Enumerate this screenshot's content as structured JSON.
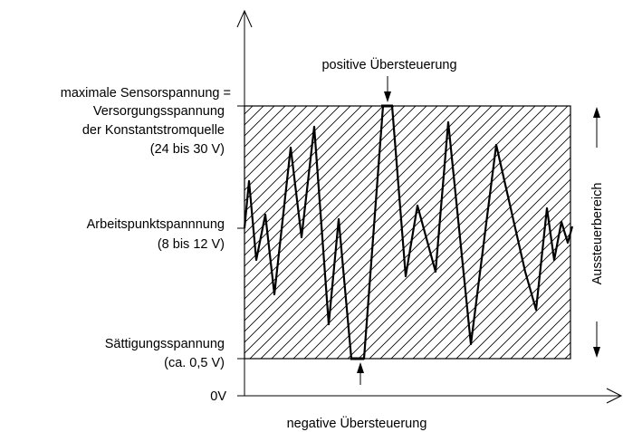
{
  "labels": {
    "max_line1": "maximale Sensorspannung =",
    "max_line2": "Versorgungsspannung",
    "max_line3": "der Konstantstromquelle",
    "max_line4": "(24 bis 30 V)",
    "work_line1": "Arbeitspunktspannnung",
    "work_line2": "(8 bis 12 V)",
    "sat_line1": "Sättigungsspannung",
    "sat_line2": "(ca. 0,5 V)",
    "zero": "0V",
    "positive_overdrive": "positive Übersteuerung",
    "negative_overdrive": "negative Übersteuerung",
    "range": "Aussteuerbereich"
  }
}
